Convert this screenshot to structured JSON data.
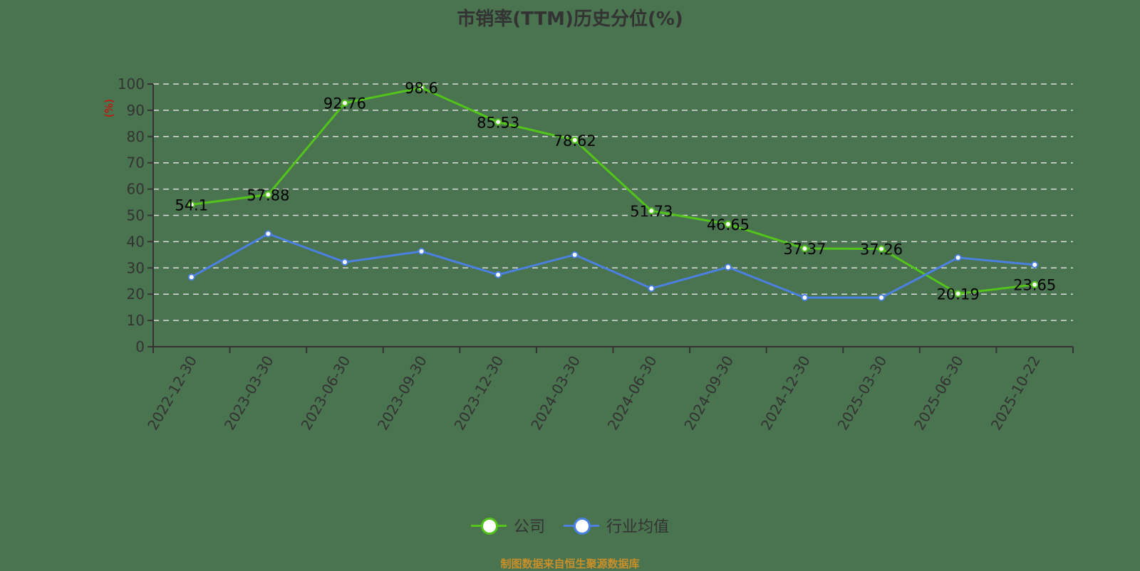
{
  "title": "市销率(TTM)历史分位(%)",
  "source": "制图数据来自恒生聚源数据库",
  "legend": [
    {
      "label": "公司",
      "color": "#52c41a"
    },
    {
      "label": "行业均值",
      "color": "#4a80e0"
    }
  ],
  "chart_data": {
    "type": "line",
    "title": "市销率(TTM)历史分位(%)",
    "xlabel": "",
    "ylabel": "(%)",
    "ylim": [
      0,
      100
    ],
    "yticks": [
      0,
      10,
      20,
      30,
      40,
      50,
      60,
      70,
      80,
      90,
      100
    ],
    "grid": true,
    "legend_position": "bottom",
    "categories": [
      "2022-12-30",
      "2023-03-30",
      "2023-06-30",
      "2023-09-30",
      "2023-12-30",
      "2024-03-30",
      "2024-06-30",
      "2024-09-30",
      "2024-12-30",
      "2025-03-30",
      "2025-06-30",
      "2025-10-22"
    ],
    "series": [
      {
        "name": "公司",
        "color": "#52c41a",
        "labels_shown": true,
        "values": [
          54.1,
          57.88,
          92.76,
          98.6,
          85.53,
          78.62,
          51.73,
          46.65,
          37.37,
          37.26,
          20.19,
          23.65
        ]
      },
      {
        "name": "行业均值",
        "color": "#4a80e0",
        "labels_shown": false,
        "values": [
          26.5,
          43.0,
          32.2,
          36.3,
          27.4,
          35.0,
          22.2,
          30.3,
          18.7,
          18.7,
          33.9,
          31.2
        ]
      }
    ]
  }
}
